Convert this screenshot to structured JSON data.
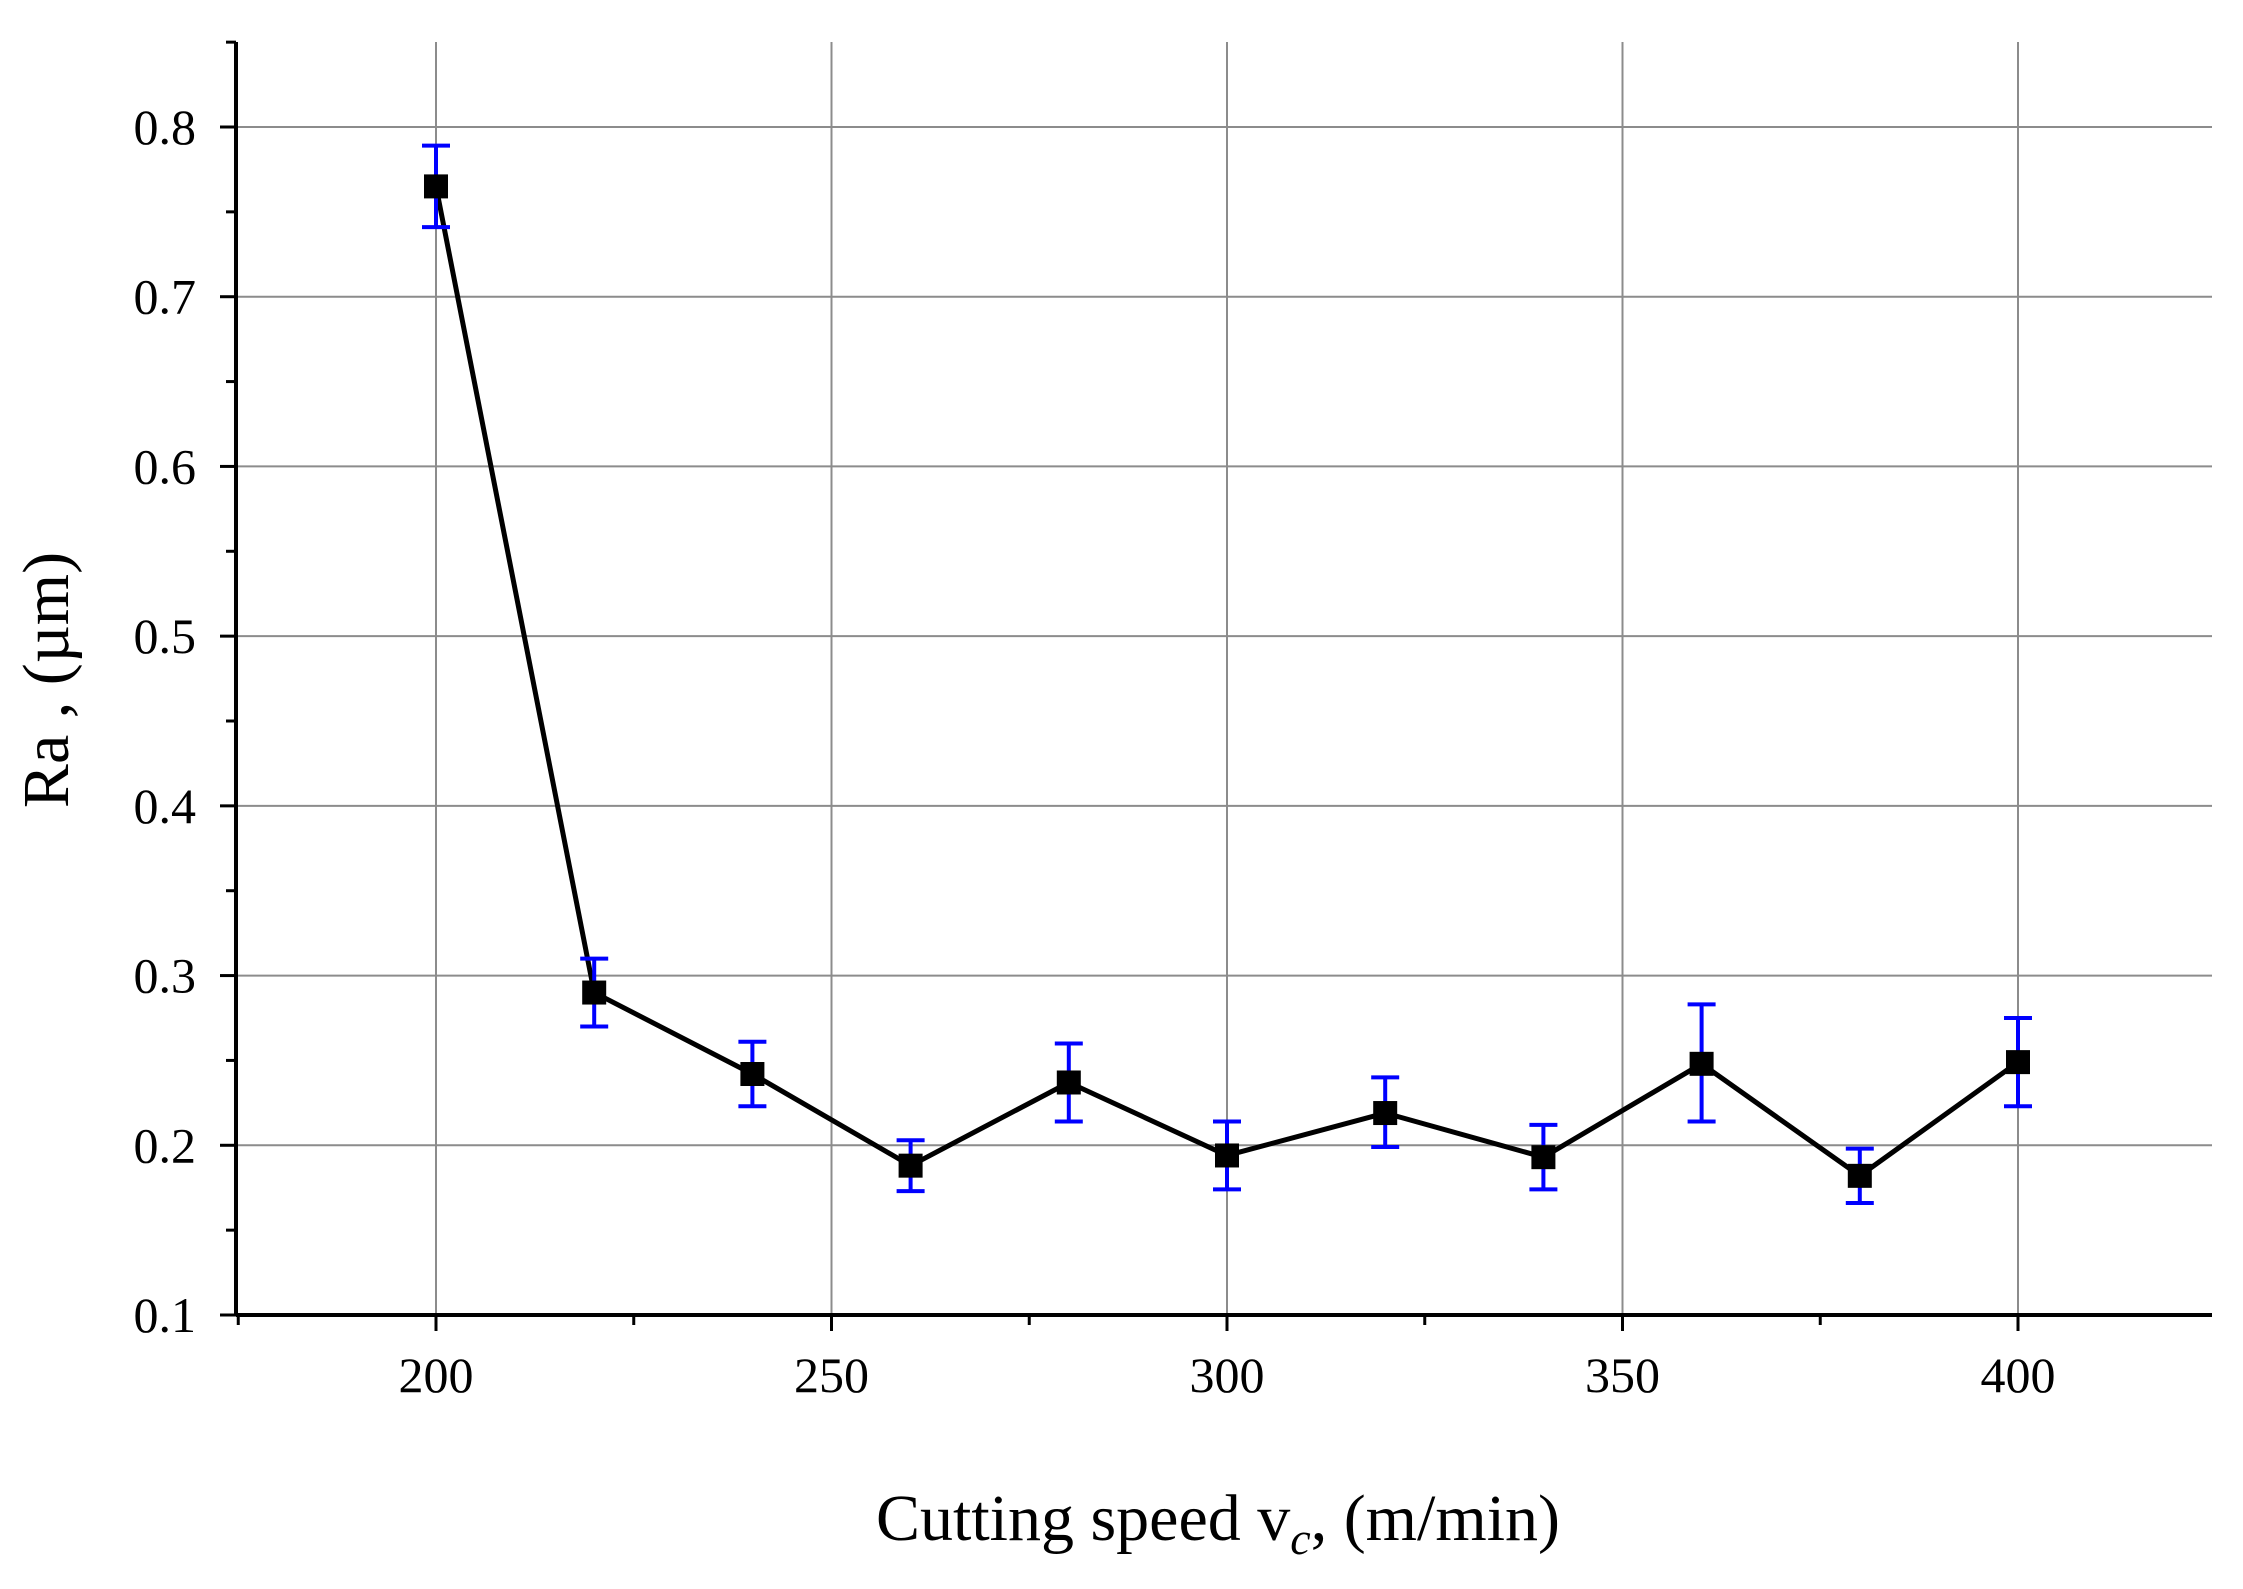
{
  "chart_data": {
    "type": "line",
    "title": "",
    "xlabel": "Cutting speed v_c, (m/min)",
    "xlabel_parts": {
      "main": "Cutting speed v",
      "sub": "c",
      "rest": ", (m/min)"
    },
    "ylabel": "Ra , (µm)",
    "xlim": [
      175,
      425
    ],
    "ylim": [
      0.1,
      0.85
    ],
    "x_ticks": [
      200,
      250,
      300,
      350,
      400
    ],
    "x_tick_labels": [
      "200",
      "250",
      "300",
      "350",
      "400"
    ],
    "y_ticks": [
      0.1,
      0.2,
      0.3,
      0.4,
      0.5,
      0.6,
      0.7,
      0.8
    ],
    "y_tick_labels": [
      "0.1",
      "0.2",
      "0.3",
      "0.4",
      "0.5",
      "0.6",
      "0.7",
      "0.8"
    ],
    "grid": true,
    "series": [
      {
        "name": "Ra",
        "x": [
          200,
          220,
          240,
          260,
          280,
          300,
          320,
          340,
          360,
          380,
          400
        ],
        "y": [
          0.765,
          0.29,
          0.242,
          0.188,
          0.237,
          0.194,
          0.219,
          0.193,
          0.248,
          0.182,
          0.249
        ],
        "err_low": [
          0.741,
          0.27,
          0.223,
          0.173,
          0.214,
          0.174,
          0.199,
          0.174,
          0.214,
          0.166,
          0.223
        ],
        "err_high": [
          0.789,
          0.31,
          0.261,
          0.203,
          0.26,
          0.214,
          0.24,
          0.212,
          0.283,
          0.198,
          0.275
        ]
      }
    ],
    "colors": {
      "line": "#000000",
      "marker": "#000000",
      "error_bar": "#0000ff",
      "grid": "#8c8c8c",
      "axis": "#000000"
    }
  }
}
